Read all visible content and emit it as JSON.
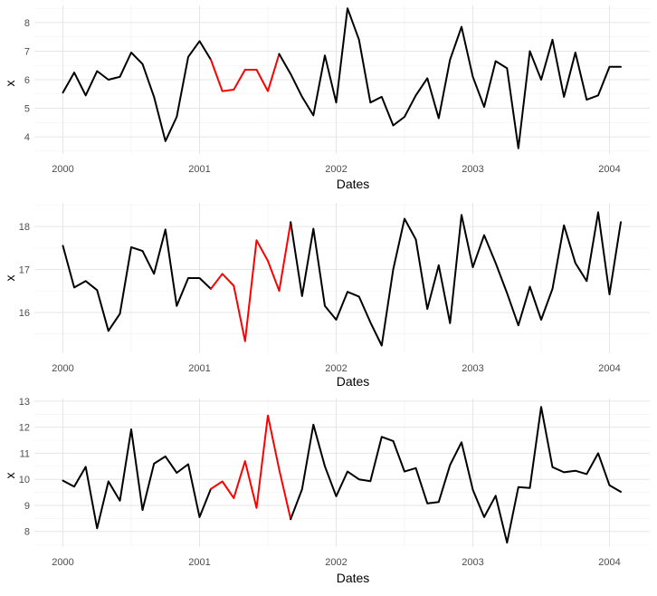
{
  "chart_data": [
    {
      "type": "line",
      "xlabel": "Dates",
      "ylabel": "x",
      "xticks": [
        "2000",
        "2001",
        "2002",
        "2003",
        "2004"
      ],
      "yticks": [
        4,
        5,
        6,
        7,
        8
      ],
      "xlim": [
        1999.83,
        2004.25
      ],
      "ylim": [
        3.4,
        8.6
      ],
      "grid": true,
      "series": [
        {
          "color": "#000000",
          "x": [
            2000.0,
            2000.083,
            2000.167,
            2000.25,
            2000.333,
            2000.417,
            2000.5,
            2000.583,
            2000.667,
            2000.75,
            2000.833,
            2000.917,
            2001.0,
            2001.083
          ],
          "y": [
            5.55,
            6.25,
            5.45,
            6.3,
            6.0,
            6.1,
            6.95,
            6.55,
            5.4,
            3.85,
            4.7,
            6.8,
            7.35,
            6.7
          ]
        },
        {
          "color": "#ff0000",
          "x": [
            2001.083,
            2001.167,
            2001.25,
            2001.333,
            2001.417,
            2001.5,
            2001.583
          ],
          "y": [
            6.7,
            5.6,
            5.65,
            6.35,
            6.35,
            5.6,
            6.9
          ]
        },
        {
          "color": "#000000",
          "x": [
            2001.583,
            2001.667,
            2001.75,
            2001.833,
            2001.917,
            2002.0,
            2002.083,
            2002.167,
            2002.25,
            2002.333,
            2002.417,
            2002.5,
            2002.583,
            2002.667,
            2002.75,
            2002.833,
            2002.917,
            2003.0,
            2003.083,
            2003.167,
            2003.25,
            2003.333,
            2003.417,
            2003.5,
            2003.583,
            2003.667,
            2003.75,
            2003.833,
            2003.917,
            2004.0,
            2004.083
          ],
          "y": [
            6.9,
            6.2,
            5.4,
            4.75,
            6.85,
            5.2,
            8.5,
            7.4,
            5.2,
            5.4,
            4.4,
            4.7,
            5.45,
            6.05,
            4.65,
            6.7,
            7.85,
            6.1,
            5.05,
            6.65,
            6.4,
            3.6,
            7.0,
            6.0,
            7.4,
            5.4,
            6.95,
            5.3,
            5.45,
            6.45,
            6.45
          ]
        }
      ]
    },
    {
      "type": "line",
      "xlabel": "Dates",
      "ylabel": "x",
      "xticks": [
        "2000",
        "2001",
        "2002",
        "2003",
        "2004"
      ],
      "yticks": [
        16,
        17,
        18
      ],
      "xlim": [
        1999.83,
        2004.25
      ],
      "ylim": [
        15.05,
        18.55
      ],
      "grid": true,
      "series": [
        {
          "color": "#000000",
          "x": [
            2000.0,
            2000.083,
            2000.167,
            2000.25,
            2000.333,
            2000.417,
            2000.5,
            2000.583,
            2000.667,
            2000.75,
            2000.833,
            2000.917,
            2001.0,
            2001.083
          ],
          "y": [
            17.55,
            16.58,
            16.73,
            16.52,
            15.57,
            15.97,
            17.52,
            17.43,
            16.9,
            17.93,
            16.15,
            16.8,
            16.8,
            16.55
          ]
        },
        {
          "color": "#ff0000",
          "x": [
            2001.083,
            2001.167,
            2001.25,
            2001.333,
            2001.417,
            2001.5,
            2001.583,
            2001.667
          ],
          "y": [
            16.55,
            16.9,
            16.62,
            15.33,
            17.68,
            17.2,
            16.5,
            18.1
          ]
        },
        {
          "color": "#000000",
          "x": [
            2001.667,
            2001.75,
            2001.833,
            2001.917,
            2002.0,
            2002.083,
            2002.167,
            2002.25,
            2002.333,
            2002.417,
            2002.5,
            2002.583,
            2002.667,
            2002.75,
            2002.833,
            2002.917,
            2003.0,
            2003.083,
            2003.167,
            2003.25,
            2003.333,
            2003.417,
            2003.5,
            2003.583,
            2003.667,
            2003.75,
            2003.833,
            2003.917,
            2004.0,
            2004.083
          ],
          "y": [
            18.1,
            16.38,
            17.95,
            16.15,
            15.83,
            16.48,
            16.37,
            15.77,
            15.23,
            17.0,
            18.18,
            17.7,
            16.08,
            17.1,
            15.75,
            18.27,
            17.05,
            17.8,
            17.15,
            16.45,
            15.7,
            16.6,
            15.83,
            16.55,
            18.03,
            17.15,
            16.73,
            18.33,
            16.42,
            18.1
          ]
        }
      ]
    },
    {
      "type": "line",
      "xlabel": "Dates",
      "ylabel": "x",
      "xticks": [
        "2000",
        "2001",
        "2002",
        "2003",
        "2004"
      ],
      "yticks": [
        8,
        9,
        10,
        11,
        12,
        13
      ],
      "xlim": [
        1999.83,
        2004.25
      ],
      "ylim": [
        7.4,
        13.1
      ],
      "grid": true,
      "series": [
        {
          "color": "#000000",
          "x": [
            2000.0,
            2000.083,
            2000.167,
            2000.25,
            2000.333,
            2000.417,
            2000.5,
            2000.583,
            2000.667,
            2000.75,
            2000.833,
            2000.917,
            2001.0,
            2001.083
          ],
          "y": [
            9.95,
            9.72,
            10.48,
            8.12,
            9.92,
            9.18,
            11.92,
            8.82,
            10.6,
            10.88,
            10.25,
            10.58,
            8.55,
            9.63
          ]
        },
        {
          "color": "#ff0000",
          "x": [
            2001.083,
            2001.167,
            2001.25,
            2001.333,
            2001.417,
            2001.5,
            2001.583,
            2001.667
          ],
          "y": [
            9.63,
            9.92,
            9.28,
            10.7,
            8.9,
            12.45,
            10.38,
            8.47
          ]
        },
        {
          "color": "#000000",
          "x": [
            2001.667,
            2001.75,
            2001.833,
            2001.917,
            2002.0,
            2002.083,
            2002.167,
            2002.25,
            2002.333,
            2002.417,
            2002.5,
            2002.583,
            2002.667,
            2002.75,
            2002.833,
            2002.917,
            2003.0,
            2003.083,
            2003.167,
            2003.25,
            2003.333,
            2003.417,
            2003.5,
            2003.583,
            2003.667,
            2003.75,
            2003.833,
            2003.917,
            2004.0,
            2004.083
          ],
          "y": [
            8.47,
            9.62,
            12.1,
            10.5,
            9.35,
            10.3,
            10.0,
            9.93,
            11.63,
            11.47,
            10.3,
            10.43,
            9.08,
            9.13,
            10.55,
            11.42,
            9.6,
            8.55,
            9.37,
            7.57,
            9.7,
            9.67,
            12.78,
            10.47,
            10.27,
            10.33,
            10.2,
            11.0,
            9.77,
            9.52
          ]
        }
      ]
    }
  ]
}
